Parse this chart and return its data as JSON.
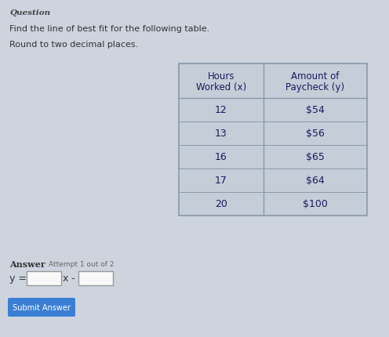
{
  "title": "Question",
  "line1": "Find the line of best fit for the following table.",
  "line2": "Round to two decimal places.",
  "col1_header": [
    "Hours",
    "Worked (x)"
  ],
  "col2_header": [
    "Amount of",
    "Paycheck (y)"
  ],
  "rows": [
    [
      "12",
      "$54"
    ],
    [
      "13",
      "$56"
    ],
    [
      "16",
      "$65"
    ],
    [
      "17",
      "$64"
    ],
    [
      "20",
      "$100"
    ]
  ],
  "answer_label": "Answer",
  "attempt_label": "Attempt 1 out of 2",
  "equation_prefix": "y =",
  "equation_middle": "x",
  "equation_separator": "-",
  "submit_button_text": "Submit Answer",
  "submit_button_color": "#3a7fd5",
  "submit_button_text_color": "#ffffff",
  "bg_color": "#cdd4de",
  "table_bg_color": "#c5cdd8",
  "header_text_color": "#1a1a5e",
  "row_text_color": "#1a1a5e",
  "title_color": "#444444",
  "body_text_color": "#333333",
  "input_box_color": "#f8f8f8",
  "table_border_color": "#8899aa",
  "fig_width": 4.96,
  "fig_height": 4.31,
  "dpi": 100
}
